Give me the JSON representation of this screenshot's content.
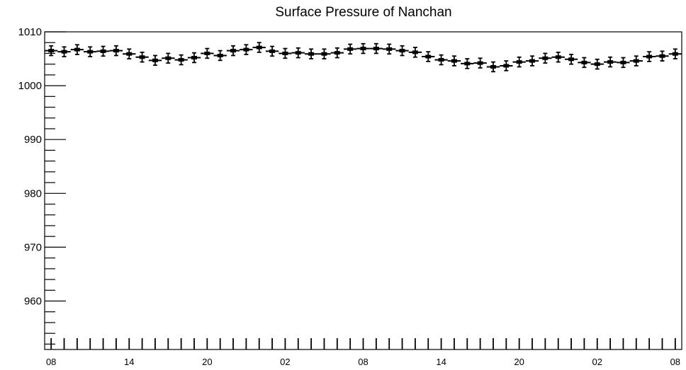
{
  "chart_data": {
    "type": "scatter",
    "title": "Surface Pressure of Nanchan",
    "xlabel": "",
    "ylabel": "",
    "ylim": [
      951,
      1010
    ],
    "grid": false,
    "legend": "none",
    "colors": {
      "marker": "#000000",
      "axis": "#000000",
      "background": "#ffffff"
    },
    "y_ticks": [
      {
        "value": 960,
        "label": "960"
      },
      {
        "value": 970,
        "label": "970"
      },
      {
        "value": 980,
        "label": "980"
      },
      {
        "value": 990,
        "label": "990"
      },
      {
        "value": 1000,
        "label": "1000"
      },
      {
        "value": 1010,
        "label": "1010"
      }
    ],
    "x_ticks": [
      {
        "index": 0,
        "label": "08"
      },
      {
        "index": 6,
        "label": "14"
      },
      {
        "index": 12,
        "label": "20"
      },
      {
        "index": 18,
        "label": "02"
      },
      {
        "index": 24,
        "label": "08"
      },
      {
        "index": 30,
        "label": "14"
      },
      {
        "index": 36,
        "label": "20"
      },
      {
        "index": 42,
        "label": "02"
      },
      {
        "index": 48,
        "label": "08"
      }
    ],
    "x_range": [
      -0.5,
      48.5
    ],
    "series": [
      {
        "error": 0.9,
        "values": [
          1006.5,
          1006.3,
          1006.7,
          1006.3,
          1006.4,
          1006.5,
          1005.9,
          1005.3,
          1004.7,
          1005.1,
          1004.8,
          1005.2,
          1006.0,
          1005.6,
          1006.5,
          1006.7,
          1007.1,
          1006.4,
          1006.0,
          1006.1,
          1005.9,
          1005.9,
          1006.1,
          1006.8,
          1006.9,
          1006.9,
          1006.8,
          1006.5,
          1006.2,
          1005.4,
          1004.8,
          1004.6,
          1004.1,
          1004.2,
          1003.5,
          1003.7,
          1004.4,
          1004.6,
          1005.1,
          1005.3,
          1004.9,
          1004.3,
          1004.0,
          1004.4,
          1004.3,
          1004.6,
          1005.4,
          1005.5,
          1005.9
        ]
      }
    ]
  }
}
